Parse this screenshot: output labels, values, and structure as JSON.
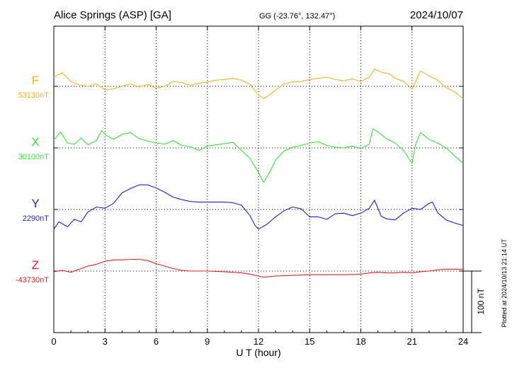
{
  "header": {
    "station": "Alice Springs (ASP)  [GA]",
    "coords": "GG (-23.76°, 132.47°)",
    "date": "2024/10/07"
  },
  "side_note": "Plotted at 2024/10/13 21:14 UT",
  "scale_label": "100 nT",
  "chart_data": {
    "type": "line",
    "xlabel": "U T (hour)",
    "xlim": [
      0,
      24
    ],
    "xticks": [
      "0",
      "3",
      "6",
      "9",
      "12",
      "15",
      "18",
      "21",
      "24"
    ],
    "y_unit": "nT",
    "scale_bar_nT": 100,
    "grid": true,
    "series": [
      {
        "name": "F",
        "baseline_label": "53130nT",
        "baseline": 53130,
        "color": "#f5b21e",
        "points": [
          [
            0,
            53145
          ],
          [
            0.5,
            53152
          ],
          [
            1,
            53138
          ],
          [
            1.5,
            53132
          ],
          [
            2,
            53130
          ],
          [
            2.5,
            53134
          ],
          [
            3,
            53124
          ],
          [
            3.5,
            53126
          ],
          [
            4,
            53130
          ],
          [
            4.5,
            53134
          ],
          [
            5,
            53129
          ],
          [
            5.5,
            53133
          ],
          [
            6,
            53127
          ],
          [
            6.5,
            53130
          ],
          [
            7,
            53138
          ],
          [
            7.5,
            53136
          ],
          [
            8,
            53132
          ],
          [
            8.5,
            53135
          ],
          [
            9,
            53137
          ],
          [
            9.5,
            53140
          ],
          [
            10,
            53141
          ],
          [
            10.5,
            53143
          ],
          [
            11,
            53140
          ],
          [
            11.5,
            53133
          ],
          [
            12,
            53116
          ],
          [
            12.3,
            53110
          ],
          [
            12.7,
            53117
          ],
          [
            13,
            53124
          ],
          [
            13.5,
            53134
          ],
          [
            14,
            53137
          ],
          [
            14.5,
            53138
          ],
          [
            15,
            53141
          ],
          [
            15.5,
            53143
          ],
          [
            16,
            53145
          ],
          [
            16.5,
            53141
          ],
          [
            17,
            53139
          ],
          [
            17.5,
            53142
          ],
          [
            18,
            53138
          ],
          [
            18.5,
            53145
          ],
          [
            18.8,
            53158
          ],
          [
            19.2,
            53153
          ],
          [
            19.7,
            53150
          ],
          [
            20,
            53143
          ],
          [
            20.5,
            53138
          ],
          [
            21,
            53126
          ],
          [
            21.3,
            53143
          ],
          [
            21.5,
            53155
          ],
          [
            22,
            53147
          ],
          [
            22.5,
            53140
          ],
          [
            23,
            53128
          ],
          [
            23.5,
            53121
          ],
          [
            24,
            53110
          ]
        ]
      },
      {
        "name": "X",
        "baseline_label": "30100nT",
        "baseline": 30100,
        "color": "#33e833",
        "points": [
          [
            0,
            30113
          ],
          [
            0.4,
            30126
          ],
          [
            0.8,
            30108
          ],
          [
            1.2,
            30106
          ],
          [
            1.6,
            30116
          ],
          [
            2,
            30105
          ],
          [
            2.5,
            30112
          ],
          [
            2.8,
            30128
          ],
          [
            3.1,
            30120
          ],
          [
            3.5,
            30114
          ],
          [
            4,
            30122
          ],
          [
            4.5,
            30125
          ],
          [
            5,
            30115
          ],
          [
            5.5,
            30111
          ],
          [
            6,
            30108
          ],
          [
            6.5,
            30106
          ],
          [
            7,
            30112
          ],
          [
            7.5,
            30104
          ],
          [
            8,
            30102
          ],
          [
            8.5,
            30096
          ],
          [
            9,
            30103
          ],
          [
            9.5,
            30105
          ],
          [
            10,
            30107
          ],
          [
            10.5,
            30109
          ],
          [
            11,
            30096
          ],
          [
            11.5,
            30083
          ],
          [
            12,
            30060
          ],
          [
            12.3,
            30044
          ],
          [
            12.7,
            30063
          ],
          [
            13,
            30080
          ],
          [
            13.5,
            30095
          ],
          [
            14,
            30101
          ],
          [
            14.5,
            30104
          ],
          [
            15,
            30108
          ],
          [
            15.5,
            30110
          ],
          [
            16,
            30104
          ],
          [
            16.5,
            30101
          ],
          [
            17,
            30100
          ],
          [
            17.5,
            30103
          ],
          [
            18,
            30099
          ],
          [
            18.5,
            30106
          ],
          [
            18.7,
            30131
          ],
          [
            19,
            30126
          ],
          [
            19.5,
            30115
          ],
          [
            20,
            30108
          ],
          [
            20.5,
            30096
          ],
          [
            21,
            30075
          ],
          [
            21.2,
            30105
          ],
          [
            21.5,
            30125
          ],
          [
            22,
            30114
          ],
          [
            22.5,
            30108
          ],
          [
            23,
            30100
          ],
          [
            23.5,
            30087
          ],
          [
            24,
            30075
          ]
        ]
      },
      {
        "name": "Y",
        "baseline_label": "2290nT",
        "baseline": 2290,
        "color": "#1f1fd6",
        "points": [
          [
            0,
            2258
          ],
          [
            0.3,
            2270
          ],
          [
            0.8,
            2262
          ],
          [
            1.2,
            2274
          ],
          [
            1.6,
            2270
          ],
          [
            2,
            2286
          ],
          [
            2.5,
            2294
          ],
          [
            3,
            2292
          ],
          [
            3.5,
            2300
          ],
          [
            4,
            2317
          ],
          [
            4.5,
            2324
          ],
          [
            5,
            2330
          ],
          [
            5.5,
            2330
          ],
          [
            6,
            2325
          ],
          [
            6.5,
            2318
          ],
          [
            7,
            2310
          ],
          [
            7.5,
            2306
          ],
          [
            8,
            2303
          ],
          [
            8.5,
            2302
          ],
          [
            9,
            2302
          ],
          [
            9.5,
            2302
          ],
          [
            10,
            2302
          ],
          [
            10.5,
            2301
          ],
          [
            11,
            2297
          ],
          [
            11.5,
            2280
          ],
          [
            11.8,
            2264
          ],
          [
            12,
            2258
          ],
          [
            12.5,
            2266
          ],
          [
            13,
            2278
          ],
          [
            13.5,
            2288
          ],
          [
            14,
            2294
          ],
          [
            14.5,
            2291
          ],
          [
            15,
            2278
          ],
          [
            15.5,
            2278
          ],
          [
            16,
            2274
          ],
          [
            16.5,
            2283
          ],
          [
            17,
            2284
          ],
          [
            17.5,
            2280
          ],
          [
            18,
            2284
          ],
          [
            18.5,
            2292
          ],
          [
            18.8,
            2305
          ],
          [
            19.2,
            2279
          ],
          [
            19.5,
            2275
          ],
          [
            20,
            2273
          ],
          [
            20.5,
            2284
          ],
          [
            21,
            2292
          ],
          [
            21.5,
            2290
          ],
          [
            22,
            2300
          ],
          [
            22.2,
            2302
          ],
          [
            22.5,
            2285
          ],
          [
            23,
            2273
          ],
          [
            23.5,
            2268
          ],
          [
            24,
            2264
          ]
        ]
      },
      {
        "name": "Z",
        "baseline_label": "-43730nT",
        "baseline": -43730,
        "color": "#e02020",
        "points": [
          [
            0,
            -43731
          ],
          [
            0.5,
            -43729
          ],
          [
            1,
            -43732
          ],
          [
            1.5,
            -43727
          ],
          [
            2,
            -43722
          ],
          [
            2.5,
            -43719
          ],
          [
            3,
            -43714
          ],
          [
            3.5,
            -43712
          ],
          [
            4,
            -43712
          ],
          [
            4.5,
            -43711
          ],
          [
            5,
            -43711
          ],
          [
            5.5,
            -43713
          ],
          [
            6,
            -43718
          ],
          [
            6.5,
            -43722
          ],
          [
            7,
            -43726
          ],
          [
            7.5,
            -43729
          ],
          [
            8,
            -43730
          ],
          [
            9,
            -43730
          ],
          [
            10,
            -43731
          ],
          [
            11,
            -43733
          ],
          [
            11.5,
            -43735
          ],
          [
            12,
            -43738
          ],
          [
            12.3,
            -43740
          ],
          [
            13,
            -43738
          ],
          [
            14,
            -43737
          ],
          [
            15,
            -43736
          ],
          [
            16,
            -43736
          ],
          [
            17,
            -43736
          ],
          [
            18,
            -43735
          ],
          [
            18.5,
            -43733
          ],
          [
            19,
            -43732
          ],
          [
            19.5,
            -43733
          ],
          [
            20,
            -43733
          ],
          [
            20.5,
            -43732
          ],
          [
            21,
            -43733
          ],
          [
            21.5,
            -43731
          ],
          [
            22,
            -43730
          ],
          [
            22.5,
            -43728
          ],
          [
            23,
            -43727
          ],
          [
            23.5,
            -43727
          ],
          [
            24,
            -43727
          ]
        ]
      }
    ]
  }
}
